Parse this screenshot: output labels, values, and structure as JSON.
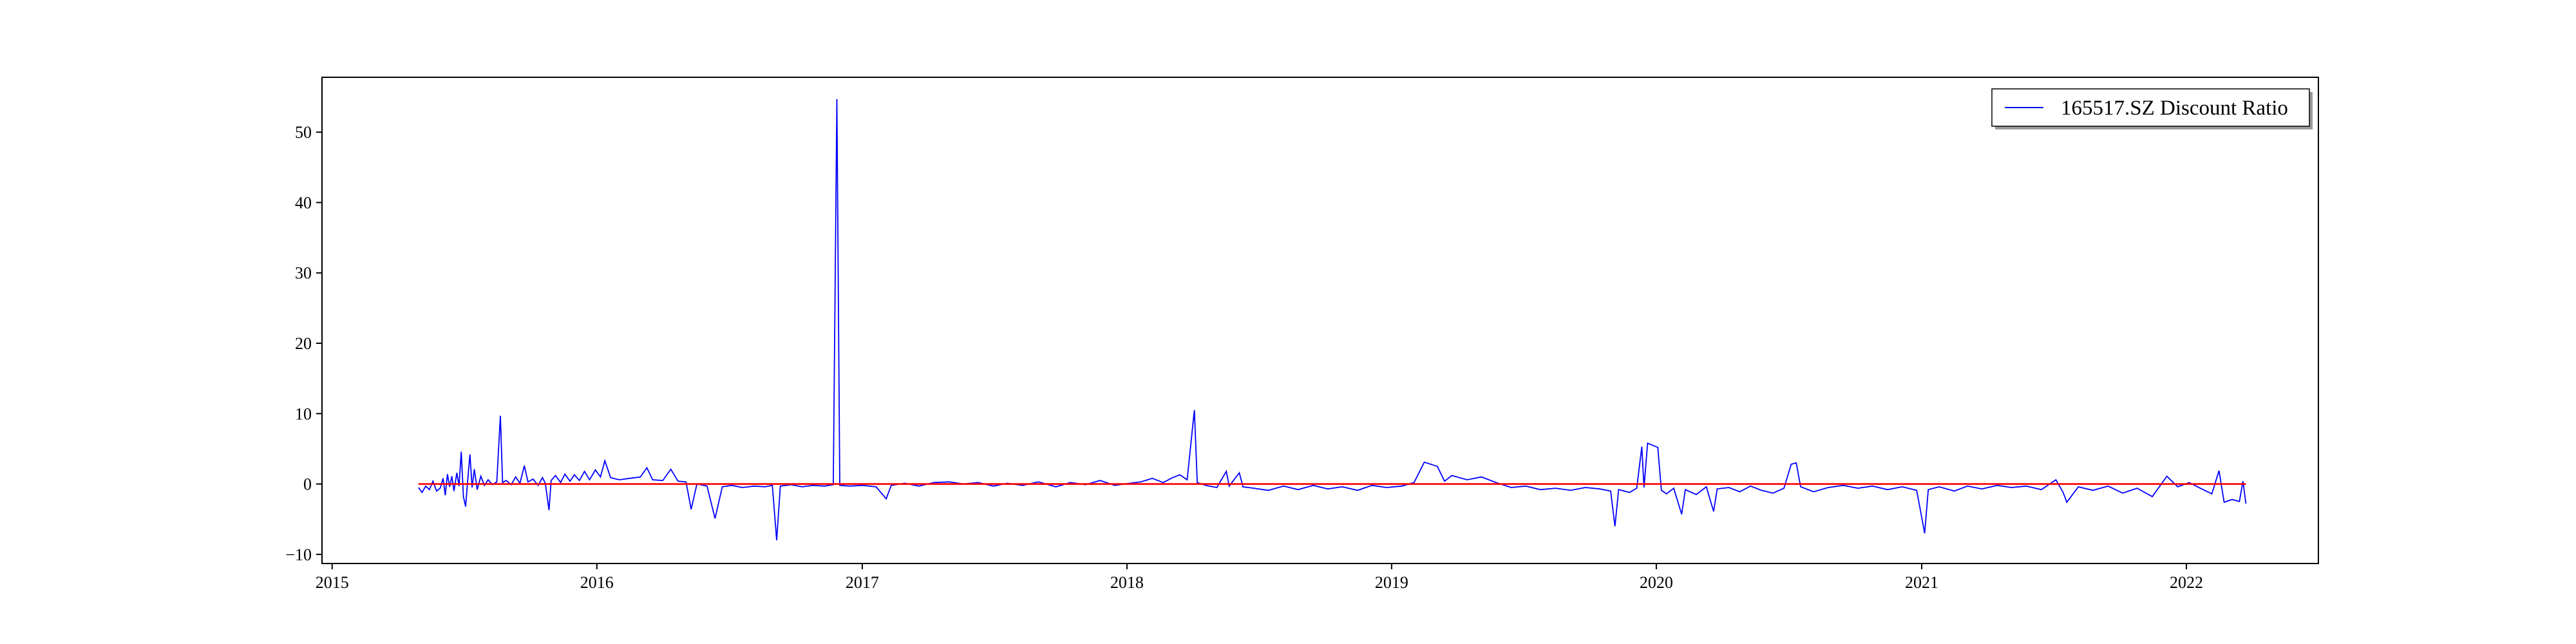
{
  "chart_data": {
    "type": "line",
    "title": "",
    "xlabel": "",
    "ylabel": "",
    "x_axis_type": "date",
    "xlim": [
      "2014-12-18",
      "2022-07-02"
    ],
    "ylim": [
      -11.3,
      57.8
    ],
    "x_ticks": [
      "2015-01-01",
      "2016-01-01",
      "2017-01-01",
      "2018-01-01",
      "2019-01-01",
      "2020-01-01",
      "2021-01-01",
      "2022-01-01"
    ],
    "x_tick_labels": [
      "2015",
      "2016",
      "2017",
      "2018",
      "2019",
      "2020",
      "2021",
      "2022"
    ],
    "y_ticks": [
      -10,
      0,
      10,
      20,
      30,
      40,
      50
    ],
    "y_tick_labels": [
      "−10",
      "0",
      "10",
      "20",
      "30",
      "40",
      "50"
    ],
    "grid": false,
    "legend": {
      "placement": "top-right",
      "entries": [
        "165517.SZ Discount Ratio"
      ]
    },
    "series": [
      {
        "name": "165517.SZ Discount Ratio",
        "color": "#0000ff",
        "points": [
          [
            "2015-04-30",
            -0.5
          ],
          [
            "2015-05-05",
            -1.2
          ],
          [
            "2015-05-10",
            -0.3
          ],
          [
            "2015-05-15",
            -0.8
          ],
          [
            "2015-05-20",
            0.4
          ],
          [
            "2015-05-25",
            -1.0
          ],
          [
            "2015-05-30",
            -0.6
          ],
          [
            "2015-06-03",
            0.8
          ],
          [
            "2015-06-06",
            -1.6
          ],
          [
            "2015-06-09",
            1.4
          ],
          [
            "2015-06-12",
            -0.4
          ],
          [
            "2015-06-15",
            1.1
          ],
          [
            "2015-06-18",
            -1.0
          ],
          [
            "2015-06-22",
            1.6
          ],
          [
            "2015-06-25",
            -0.3
          ],
          [
            "2015-06-28",
            4.6
          ],
          [
            "2015-07-01",
            -1.8
          ],
          [
            "2015-07-04",
            -3.2
          ],
          [
            "2015-07-07",
            0.6
          ],
          [
            "2015-07-10",
            4.2
          ],
          [
            "2015-07-13",
            -0.5
          ],
          [
            "2015-07-16",
            2.1
          ],
          [
            "2015-07-20",
            -0.8
          ],
          [
            "2015-07-25",
            1.1
          ],
          [
            "2015-07-30",
            -0.2
          ],
          [
            "2015-08-04",
            0.6
          ],
          [
            "2015-08-10",
            -0.1
          ],
          [
            "2015-08-16",
            0.3
          ],
          [
            "2015-08-21",
            9.7
          ],
          [
            "2015-08-24",
            0.2
          ],
          [
            "2015-08-29",
            0.5
          ],
          [
            "2015-09-05",
            -0.1
          ],
          [
            "2015-09-11",
            1.0
          ],
          [
            "2015-09-17",
            0.1
          ],
          [
            "2015-09-23",
            2.6
          ],
          [
            "2015-09-28",
            0.3
          ],
          [
            "2015-10-05",
            0.7
          ],
          [
            "2015-10-12",
            -0.2
          ],
          [
            "2015-10-18",
            0.9
          ],
          [
            "2015-10-22",
            0.1
          ],
          [
            "2015-10-27",
            -3.7
          ],
          [
            "2015-10-30",
            0.5
          ],
          [
            "2015-11-05",
            1.2
          ],
          [
            "2015-11-12",
            0.2
          ],
          [
            "2015-11-18",
            1.4
          ],
          [
            "2015-11-25",
            0.4
          ],
          [
            "2015-12-01",
            1.3
          ],
          [
            "2015-12-08",
            0.5
          ],
          [
            "2015-12-15",
            1.8
          ],
          [
            "2015-12-22",
            0.6
          ],
          [
            "2015-12-30",
            2.0
          ],
          [
            "2016-01-06",
            1.0
          ],
          [
            "2016-01-12",
            3.3
          ],
          [
            "2016-01-20",
            0.9
          ],
          [
            "2016-02-01",
            0.6
          ],
          [
            "2016-02-15",
            0.8
          ],
          [
            "2016-03-01",
            1.0
          ],
          [
            "2016-03-10",
            2.3
          ],
          [
            "2016-03-18",
            0.6
          ],
          [
            "2016-04-01",
            0.5
          ],
          [
            "2016-04-12",
            2.1
          ],
          [
            "2016-04-22",
            0.4
          ],
          [
            "2016-05-03",
            0.3
          ],
          [
            "2016-05-10",
            -3.6
          ],
          [
            "2016-05-18",
            0.0
          ],
          [
            "2016-06-01",
            -0.3
          ],
          [
            "2016-06-12",
            -4.9
          ],
          [
            "2016-06-22",
            -0.4
          ],
          [
            "2016-07-05",
            -0.2
          ],
          [
            "2016-07-20",
            -0.5
          ],
          [
            "2016-08-05",
            -0.3
          ],
          [
            "2016-08-20",
            -0.4
          ],
          [
            "2016-08-30",
            -0.2
          ],
          [
            "2016-09-05",
            -8.0
          ],
          [
            "2016-09-10",
            -0.3
          ],
          [
            "2016-09-25",
            -0.1
          ],
          [
            "2016-10-10",
            -0.4
          ],
          [
            "2016-10-25",
            -0.2
          ],
          [
            "2016-11-10",
            -0.3
          ],
          [
            "2016-11-22",
            -0.1
          ],
          [
            "2016-11-27",
            54.7
          ],
          [
            "2016-12-01",
            -0.2
          ],
          [
            "2016-12-15",
            -0.3
          ],
          [
            "2017-01-01",
            -0.2
          ],
          [
            "2017-01-20",
            -0.4
          ],
          [
            "2017-02-03",
            -2.1
          ],
          [
            "2017-02-10",
            -0.2
          ],
          [
            "2017-03-01",
            0.1
          ],
          [
            "2017-03-20",
            -0.3
          ],
          [
            "2017-04-10",
            0.2
          ],
          [
            "2017-05-01",
            0.3
          ],
          [
            "2017-05-20",
            0.0
          ],
          [
            "2017-06-10",
            0.2
          ],
          [
            "2017-07-01",
            -0.3
          ],
          [
            "2017-07-20",
            0.1
          ],
          [
            "2017-08-10",
            -0.2
          ],
          [
            "2017-09-01",
            0.3
          ],
          [
            "2017-09-25",
            -0.4
          ],
          [
            "2017-10-15",
            0.2
          ],
          [
            "2017-11-05",
            -0.1
          ],
          [
            "2017-11-25",
            0.5
          ],
          [
            "2017-12-15",
            -0.2
          ],
          [
            "2018-01-05",
            0.1
          ],
          [
            "2018-01-20",
            0.3
          ],
          [
            "2018-02-05",
            0.8
          ],
          [
            "2018-02-20",
            0.2
          ],
          [
            "2018-03-05",
            0.9
          ],
          [
            "2018-03-15",
            1.3
          ],
          [
            "2018-03-25",
            0.6
          ],
          [
            "2018-04-04",
            10.5
          ],
          [
            "2018-04-08",
            0.2
          ],
          [
            "2018-04-20",
            -0.2
          ],
          [
            "2018-05-05",
            -0.5
          ],
          [
            "2018-05-18",
            1.8
          ],
          [
            "2018-05-22",
            -0.3
          ],
          [
            "2018-06-05",
            1.6
          ],
          [
            "2018-06-10",
            -0.4
          ],
          [
            "2018-06-25",
            -0.6
          ],
          [
            "2018-07-15",
            -0.9
          ],
          [
            "2018-08-05",
            -0.3
          ],
          [
            "2018-08-25",
            -0.8
          ],
          [
            "2018-09-15",
            -0.2
          ],
          [
            "2018-10-05",
            -0.7
          ],
          [
            "2018-10-25",
            -0.4
          ],
          [
            "2018-11-15",
            -0.9
          ],
          [
            "2018-12-05",
            -0.2
          ],
          [
            "2018-12-25",
            -0.5
          ],
          [
            "2019-01-15",
            -0.3
          ],
          [
            "2019-02-01",
            0.2
          ],
          [
            "2019-02-15",
            3.1
          ],
          [
            "2019-03-05",
            2.5
          ],
          [
            "2019-03-15",
            0.4
          ],
          [
            "2019-03-25",
            1.2
          ],
          [
            "2019-04-15",
            0.6
          ],
          [
            "2019-05-05",
            1.0
          ],
          [
            "2019-05-25",
            0.2
          ],
          [
            "2019-06-15",
            -0.5
          ],
          [
            "2019-07-05",
            -0.3
          ],
          [
            "2019-07-25",
            -0.8
          ],
          [
            "2019-08-15",
            -0.6
          ],
          [
            "2019-09-05",
            -0.9
          ],
          [
            "2019-09-25",
            -0.5
          ],
          [
            "2019-10-15",
            -0.7
          ],
          [
            "2019-10-30",
            -1.0
          ],
          [
            "2019-11-05",
            -6.0
          ],
          [
            "2019-11-10",
            -0.8
          ],
          [
            "2019-11-25",
            -1.2
          ],
          [
            "2019-12-05",
            -0.6
          ],
          [
            "2019-12-12",
            5.3
          ],
          [
            "2019-12-15",
            -0.5
          ],
          [
            "2019-12-20",
            5.8
          ],
          [
            "2020-01-03",
            5.2
          ],
          [
            "2020-01-08",
            -0.9
          ],
          [
            "2020-01-15",
            -1.4
          ],
          [
            "2020-01-25",
            -0.6
          ],
          [
            "2020-02-05",
            -4.3
          ],
          [
            "2020-02-10",
            -0.8
          ],
          [
            "2020-02-25",
            -1.5
          ],
          [
            "2020-03-10",
            -0.4
          ],
          [
            "2020-03-20",
            -3.9
          ],
          [
            "2020-03-25",
            -0.7
          ],
          [
            "2020-04-10",
            -0.5
          ],
          [
            "2020-04-25",
            -1.1
          ],
          [
            "2020-05-10",
            -0.3
          ],
          [
            "2020-05-25",
            -0.9
          ],
          [
            "2020-06-10",
            -1.3
          ],
          [
            "2020-06-25",
            -0.6
          ],
          [
            "2020-07-05",
            2.8
          ],
          [
            "2020-07-12",
            3.0
          ],
          [
            "2020-07-18",
            -0.4
          ],
          [
            "2020-08-05",
            -1.1
          ],
          [
            "2020-08-25",
            -0.5
          ],
          [
            "2020-09-15",
            -0.2
          ],
          [
            "2020-10-05",
            -0.6
          ],
          [
            "2020-10-25",
            -0.3
          ],
          [
            "2020-11-15",
            -0.8
          ],
          [
            "2020-12-05",
            -0.4
          ],
          [
            "2020-12-25",
            -0.9
          ],
          [
            "2021-01-05",
            -7.0
          ],
          [
            "2021-01-10",
            -0.8
          ],
          [
            "2021-01-25",
            -0.4
          ],
          [
            "2021-02-15",
            -1.0
          ],
          [
            "2021-03-05",
            -0.3
          ],
          [
            "2021-03-25",
            -0.7
          ],
          [
            "2021-04-15",
            -0.2
          ],
          [
            "2021-05-05",
            -0.5
          ],
          [
            "2021-05-25",
            -0.3
          ],
          [
            "2021-06-15",
            -0.8
          ],
          [
            "2021-07-05",
            0.6
          ],
          [
            "2021-07-15",
            -1.2
          ],
          [
            "2021-07-20",
            -2.6
          ],
          [
            "2021-08-05",
            -0.4
          ],
          [
            "2021-08-25",
            -0.9
          ],
          [
            "2021-09-15",
            -0.3
          ],
          [
            "2021-10-05",
            -1.3
          ],
          [
            "2021-10-25",
            -0.6
          ],
          [
            "2021-11-15",
            -1.8
          ],
          [
            "2021-12-05",
            1.1
          ],
          [
            "2021-12-20",
            -0.4
          ],
          [
            "2022-01-05",
            0.2
          ],
          [
            "2022-01-20",
            -0.6
          ],
          [
            "2022-02-05",
            -1.4
          ],
          [
            "2022-02-15",
            1.9
          ],
          [
            "2022-02-22",
            -2.6
          ],
          [
            "2022-03-05",
            -2.2
          ],
          [
            "2022-03-15",
            -2.5
          ],
          [
            "2022-03-20",
            0.4
          ],
          [
            "2022-03-24",
            -2.8
          ]
        ]
      },
      {
        "name": "",
        "color": "#ff0000",
        "type": "hline",
        "value": 0,
        "x_range": [
          "2015-04-30",
          "2022-03-24"
        ]
      }
    ]
  }
}
